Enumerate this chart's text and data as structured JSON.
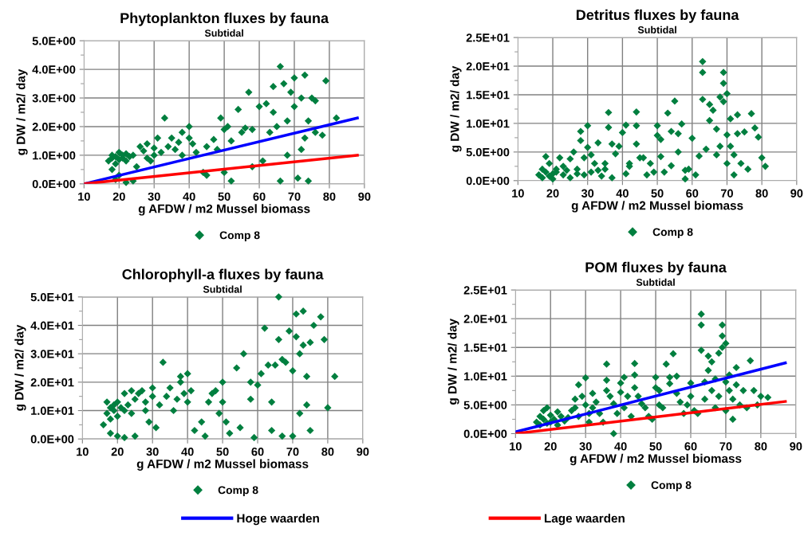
{
  "chart_data": [
    {
      "type": "scatter",
      "title": "Phytoplankton fluxes by fauna",
      "subtitle": "Subtidal",
      "xlabel": "g AFDW / m2 Mussel biomass",
      "ylabel": "g DW / m2/ day",
      "xlim": [
        10,
        90
      ],
      "xticks": [
        10,
        20,
        30,
        40,
        50,
        60,
        70,
        80,
        90
      ],
      "ylim": [
        0,
        5
      ],
      "yticks": [
        {
          "value": 0,
          "label": "0.0E+00"
        },
        {
          "value": 0.5,
          "label": null
        },
        {
          "value": 1,
          "label": "1.0E+00"
        },
        {
          "value": 1.5,
          "label": null
        },
        {
          "value": 2,
          "label": "2.0E+00"
        },
        {
          "value": 2.5,
          "label": null
        },
        {
          "value": 3,
          "label": "3.0E+00"
        },
        {
          "value": 3.5,
          "label": null
        },
        {
          "value": 4,
          "label": "4.0E+00"
        },
        {
          "value": 4.5,
          "label": null
        },
        {
          "value": 5,
          "label": "5.0E+00"
        }
      ],
      "grid": true,
      "legend": "bottom",
      "marker": "diamond",
      "series": [
        {
          "name": "Comp 8",
          "color": "#007f3f",
          "x": [
            17,
            18,
            18,
            19,
            19,
            20,
            20,
            21,
            21,
            22,
            22,
            23,
            24,
            18,
            20,
            19,
            22,
            24,
            25,
            26,
            27,
            28,
            28,
            29,
            30,
            30,
            31,
            32,
            33,
            34,
            35,
            36,
            37,
            38,
            38,
            40,
            40,
            41,
            42,
            44,
            45,
            45,
            47,
            48,
            49,
            50,
            50,
            51,
            52,
            52,
            54,
            55,
            56,
            57,
            58,
            58,
            60,
            61,
            62,
            63,
            64,
            64,
            65,
            66,
            66,
            67,
            68,
            68,
            69,
            70,
            70,
            71,
            72,
            72,
            73,
            73,
            74,
            74,
            75,
            76,
            76,
            78,
            79,
            82
          ],
          "values": [
            0.8,
            0.9,
            1.0,
            0.7,
            0.95,
            1.1,
            0.85,
            0.9,
            1.0,
            0.8,
            1.05,
            0.95,
            1.0,
            0.5,
            0.3,
            0.15,
            0.05,
            0.1,
            0.6,
            1.3,
            1.15,
            0.9,
            1.4,
            0.8,
            1.0,
            1.25,
            1.6,
            1.1,
            2.3,
            1.3,
            1.6,
            1.2,
            1.45,
            1.0,
            1.8,
            2.0,
            1.6,
            1.4,
            1.1,
            0.4,
            1.3,
            0.3,
            1.55,
            1.2,
            2.3,
            1.9,
            0.4,
            2.0,
            1.5,
            0.1,
            2.6,
            1.8,
            1.95,
            3.2,
            1.9,
            0.6,
            2.7,
            0.8,
            2.8,
            1.8,
            3.4,
            2.5,
            2.0,
            4.1,
            0.1,
            3.5,
            2.2,
            1.0,
            3.2,
            3.7,
            2.7,
            0.2,
            3.0,
            1.2,
            3.8,
            1.6,
            2.2,
            0.1,
            3.0,
            2.9,
            1.8,
            1.7,
            3.6,
            2.3
          ]
        },
        {
          "name": "Hoge waarden",
          "type": "line",
          "marker": "none",
          "color": "#0000ff",
          "x": [
            10,
            88
          ],
          "values": [
            0,
            2.3
          ]
        },
        {
          "name": "Lage waarden",
          "type": "line",
          "marker": "none",
          "color": "#ff0000",
          "x": [
            10,
            88
          ],
          "values": [
            0,
            1.0
          ]
        }
      ]
    },
    {
      "type": "scatter",
      "title": "Detritus fluxes by fauna",
      "subtitle": "Subtidal",
      "xlabel": "g AFDW / m2 Mussel biomass",
      "ylabel": "g DW / m2/ day",
      "xlim": [
        10,
        90
      ],
      "xticks": [
        10,
        20,
        30,
        40,
        50,
        60,
        70,
        80,
        90
      ],
      "ylim": [
        0,
        25
      ],
      "yticks": [
        {
          "value": 0,
          "label": "0.0E+00"
        },
        {
          "value": 2.5,
          "label": null
        },
        {
          "value": 5,
          "label": "5.0E+00"
        },
        {
          "value": 7.5,
          "label": null
        },
        {
          "value": 10,
          "label": "1.0E+01"
        },
        {
          "value": 12.5,
          "label": null
        },
        {
          "value": 15,
          "label": "1.5E+01"
        },
        {
          "value": 17.5,
          "label": null
        },
        {
          "value": 20,
          "label": "2.0E+01"
        },
        {
          "value": 22.5,
          "label": null
        },
        {
          "value": 25,
          "label": "2.5E+01"
        }
      ],
      "grid": true,
      "legend": "bottom",
      "marker": "diamond",
      "series": [
        {
          "name": "Comp 8",
          "color": "#007f3f",
          "x": [
            16,
            17,
            17,
            18,
            18,
            19,
            19,
            20,
            20,
            21,
            21,
            22,
            23,
            23,
            24,
            25,
            25,
            26,
            27,
            27,
            28,
            28,
            29,
            29,
            30,
            30,
            31,
            31,
            32,
            33,
            33,
            34,
            35,
            35,
            36,
            36,
            37,
            37,
            38,
            39,
            40,
            41,
            41,
            42,
            42,
            44,
            44,
            44,
            45,
            46,
            47,
            48,
            49,
            50,
            50,
            51,
            51,
            52,
            53,
            54,
            54,
            55,
            56,
            56,
            57,
            58,
            58,
            59,
            60,
            61,
            62,
            63,
            63,
            63,
            64,
            65,
            65,
            66,
            67,
            67,
            68,
            68,
            69,
            69,
            69,
            70,
            70,
            70,
            71,
            71,
            72,
            72,
            73,
            73,
            74,
            75,
            76,
            77,
            78,
            79,
            80,
            81
          ],
          "values": [
            1,
            0.5,
            2,
            1.5,
            4.2,
            0.8,
            3,
            1.2,
            0.3,
            2,
            1.5,
            4,
            1,
            2.5,
            1.8,
            0.5,
            3.8,
            5,
            1.2,
            2,
            8.6,
            7,
            4,
            1,
            5.8,
            9.6,
            1.5,
            4.5,
            3,
            6.6,
            1.8,
            0.8,
            3,
            2,
            11.9,
            9.3,
            6.4,
            0.5,
            4.7,
            6,
            8.4,
            9.7,
            1.2,
            3,
            2.5,
            12,
            9.6,
            6.4,
            4,
            4,
            1,
            3,
            1.5,
            7.9,
            9.6,
            4.2,
            7.2,
            1.5,
            11.8,
            8.6,
            2.6,
            13.9,
            8.2,
            5,
            9.9,
            1.8,
            0.3,
            2,
            7.4,
            1,
            4.3,
            20.8,
            18.9,
            14.2,
            5.5,
            13.3,
            10.5,
            12.3,
            4.5,
            9,
            6,
            14.6,
            17,
            13.8,
            18.9,
            15.2,
            8,
            3,
            10.8,
            6,
            4.5,
            1,
            8.2,
            11.5,
            3,
            8.5,
            2,
            11.7,
            9.2,
            7.6,
            4,
            2.5
          ]
        }
      ]
    },
    {
      "type": "scatter",
      "title": "Chlorophyll-a fluxes by fauna",
      "subtitle": "Subtidal",
      "xlabel": "g AFDW / m2 Mussel biomass",
      "ylabel": "g DW / m2/ day",
      "xlim": [
        10,
        90
      ],
      "xticks": [
        10,
        20,
        30,
        40,
        50,
        60,
        70,
        80,
        90
      ],
      "ylim": [
        0,
        50
      ],
      "yticks": [
        {
          "value": 0,
          "label": "0.0E+00"
        },
        {
          "value": 5,
          "label": null
        },
        {
          "value": 10,
          "label": "1.0E+01"
        },
        {
          "value": 15,
          "label": null
        },
        {
          "value": 20,
          "label": "2.0E+01"
        },
        {
          "value": 25,
          "label": null
        },
        {
          "value": 30,
          "label": "3.0E+01"
        },
        {
          "value": 35,
          "label": null
        },
        {
          "value": 40,
          "label": "4.0E+01"
        },
        {
          "value": 45,
          "label": null
        },
        {
          "value": 50,
          "label": "5.0E+01"
        }
      ],
      "grid": true,
      "legend": "bottom",
      "marker": "diamond",
      "series": [
        {
          "name": "Comp 8",
          "color": "#007f3f",
          "x": [
            16,
            17,
            17,
            18,
            18,
            19,
            19,
            20,
            20,
            21,
            22,
            22,
            23,
            24,
            24,
            25,
            18,
            20,
            22,
            25,
            26,
            27,
            28,
            28,
            29,
            30,
            30,
            31,
            32,
            33,
            34,
            35,
            36,
            37,
            38,
            38,
            39,
            40,
            40,
            41,
            42,
            44,
            45,
            46,
            47,
            48,
            49,
            50,
            50,
            51,
            52,
            54,
            55,
            56,
            58,
            58,
            59,
            60,
            61,
            62,
            63,
            64,
            64,
            65,
            66,
            66,
            67,
            67,
            68,
            69,
            70,
            70,
            71,
            71,
            72,
            72,
            73,
            73,
            74,
            74,
            75,
            75,
            76,
            78,
            79,
            80,
            82
          ],
          "values": [
            5,
            9,
            13,
            7,
            11,
            10,
            12,
            8,
            13,
            11,
            10,
            16,
            12,
            9,
            17,
            14,
            2,
            1,
            0.5,
            1,
            16,
            17,
            13,
            10,
            6,
            15,
            18,
            4,
            12,
            27,
            15,
            18,
            10,
            14,
            22,
            20,
            16,
            13,
            23,
            17,
            3,
            6,
            1,
            13,
            16,
            17,
            9,
            20,
            13,
            6,
            2,
            25,
            4,
            30,
            20,
            14,
            0.5,
            19,
            23,
            39,
            26,
            13,
            3,
            26,
            35,
            50,
            28,
            1,
            27,
            38,
            24,
            1,
            44,
            36,
            30,
            9,
            45,
            33,
            22,
            12,
            34,
            3,
            40,
            43,
            35,
            11,
            22
          ]
        }
      ]
    },
    {
      "type": "scatter",
      "title": "POM fluxes by fauna",
      "subtitle": "Subtidal",
      "xlabel": "g AFDW / m2 Mussel biomass",
      "ylabel": "g DW / m2/ day",
      "xlim": [
        10,
        90
      ],
      "xticks": [
        10,
        20,
        30,
        40,
        50,
        60,
        70,
        80,
        90
      ],
      "ylim": [
        0,
        25
      ],
      "yticks": [
        {
          "value": 0,
          "label": "0.0E+00"
        },
        {
          "value": 2.5,
          "label": null
        },
        {
          "value": 5,
          "label": "5.0E+00"
        },
        {
          "value": 7.5,
          "label": null
        },
        {
          "value": 10,
          "label": "1.0E+01"
        },
        {
          "value": 12.5,
          "label": null
        },
        {
          "value": 15,
          "label": "1.5E+01"
        },
        {
          "value": 17.5,
          "label": null
        },
        {
          "value": 20,
          "label": "2.0E+01"
        },
        {
          "value": 22.5,
          "label": null
        },
        {
          "value": 25,
          "label": "2.5E+01"
        }
      ],
      "grid": true,
      "legend": "bottom",
      "marker": "diamond",
      "series": [
        {
          "name": "Comp 8",
          "color": "#007f3f",
          "x": [
            16,
            17,
            17,
            18,
            18,
            19,
            19,
            20,
            20,
            21,
            22,
            22,
            23,
            24,
            25,
            26,
            27,
            27,
            28,
            28,
            29,
            30,
            30,
            31,
            31,
            32,
            32,
            33,
            34,
            35,
            36,
            36,
            36,
            37,
            38,
            38,
            39,
            40,
            40,
            41,
            41,
            42,
            43,
            44,
            44,
            44,
            45,
            46,
            47,
            48,
            49,
            50,
            50,
            51,
            51,
            52,
            53,
            54,
            54,
            55,
            56,
            56,
            57,
            58,
            59,
            60,
            60,
            61,
            62,
            63,
            63,
            63,
            64,
            64,
            65,
            65,
            66,
            66,
            67,
            67,
            68,
            68,
            69,
            69,
            69,
            70,
            70,
            70,
            71,
            71,
            72,
            72,
            73,
            73,
            74,
            75,
            76,
            77,
            78,
            79,
            80,
            82
          ],
          "values": [
            2,
            1.5,
            3,
            4,
            2.5,
            4.5,
            1.8,
            3.2,
            2,
            2.5,
            3.8,
            1.5,
            3,
            2.2,
            2.8,
            4,
            6,
            4.5,
            8.5,
            3,
            6.5,
            9.7,
            5,
            3.5,
            2,
            7,
            4.5,
            5.5,
            3.5,
            2,
            12.1,
            9.3,
            7.5,
            6.5,
            5.2,
            0,
            3.5,
            8.8,
            7.2,
            9.8,
            4.5,
            6.5,
            3,
            12.2,
            10.2,
            8,
            6.5,
            5.2,
            4.5,
            3,
            2.5,
            9.8,
            8,
            7.5,
            5,
            4.5,
            12.1,
            9.8,
            8.7,
            13.9,
            10,
            7,
            5.5,
            3.5,
            5,
            8.8,
            6.5,
            4,
            3.5,
            20.8,
            18.9,
            14.5,
            9,
            6,
            13.5,
            11,
            12.5,
            7.5,
            4.5,
            9.5,
            14,
            6.5,
            17,
            15,
            18.9,
            15.7,
            9,
            4,
            10.2,
            7.5,
            6,
            2.5,
            8.5,
            11.5,
            5,
            7.5,
            4.5,
            12.7,
            7.5,
            5,
            6.5,
            6.3
          ]
        },
        {
          "type": "line",
          "marker": "none",
          "color": "#0000ff",
          "x": [
            10,
            87
          ],
          "values": [
            0.3,
            12.3
          ]
        },
        {
          "type": "line",
          "marker": "none",
          "color": "#ff0000",
          "x": [
            10,
            87
          ],
          "values": [
            0,
            5.6
          ]
        }
      ]
    }
  ]
}
